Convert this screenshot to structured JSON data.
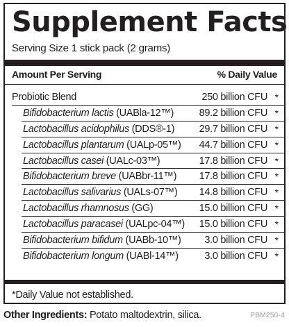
{
  "title": "Supplement Facts",
  "serving_size": "Serving Size 1 stick pack (2 grams)",
  "header": {
    "amount_per_serving": "Amount Per Serving",
    "daily_value": "% Daily Value"
  },
  "rows": [
    {
      "genus": "",
      "name": "Probiotic Blend",
      "amount": "250 billion CFU",
      "dv": "*"
    },
    {
      "genus": "Bifidobacterium lactis",
      "name": " (UABla-12™)",
      "amount": "89.2 billion CFU",
      "dv": "*"
    },
    {
      "genus": "Lactobacillus acidophilus",
      "name": " (DDS®-1)",
      "amount": "29.7 billion CFU",
      "dv": "*"
    },
    {
      "genus": "Lactobacillus plantarum",
      "name": " (UALp-05™)",
      "amount": "44.7 billion CFU",
      "dv": "*"
    },
    {
      "genus": "Lactobacillus casei",
      "name": " (UALc-03™)",
      "amount": "17.8 billion CFU",
      "dv": "*"
    },
    {
      "genus": "Bifidobacterium breve",
      "name": " (UABbr-11™)",
      "amount": "17.8 billion CFU",
      "dv": "*"
    },
    {
      "genus": "Lactobacillus salivarius",
      "name": " (UALs-07™)",
      "amount": "14.8 billion CFU",
      "dv": "*"
    },
    {
      "genus": "Lactobacillus rhamnosus",
      "name": " (GG)",
      "amount": "15.0 billion CFU",
      "dv": "*"
    },
    {
      "genus": "Lactobacillus paracasei",
      "name": " (UALpc-04™)",
      "amount": "15.0 billion CFU",
      "dv": "*"
    },
    {
      "genus": "Bifidobacterium bifidum",
      "name": " (UABb-10™)",
      "amount": "3.0 billion CFU",
      "dv": "*"
    },
    {
      "genus": "Bifidobacterium longum",
      "name": " (UABl-14™)",
      "amount": "3.0 billion CFU",
      "dv": "*"
    }
  ],
  "footnote": "*Daily Value not established.",
  "other_ingredients": {
    "label": "Other Ingredients:",
    "value": " Potato maltodextrin, silica."
  },
  "product_code": "PBM250-4"
}
